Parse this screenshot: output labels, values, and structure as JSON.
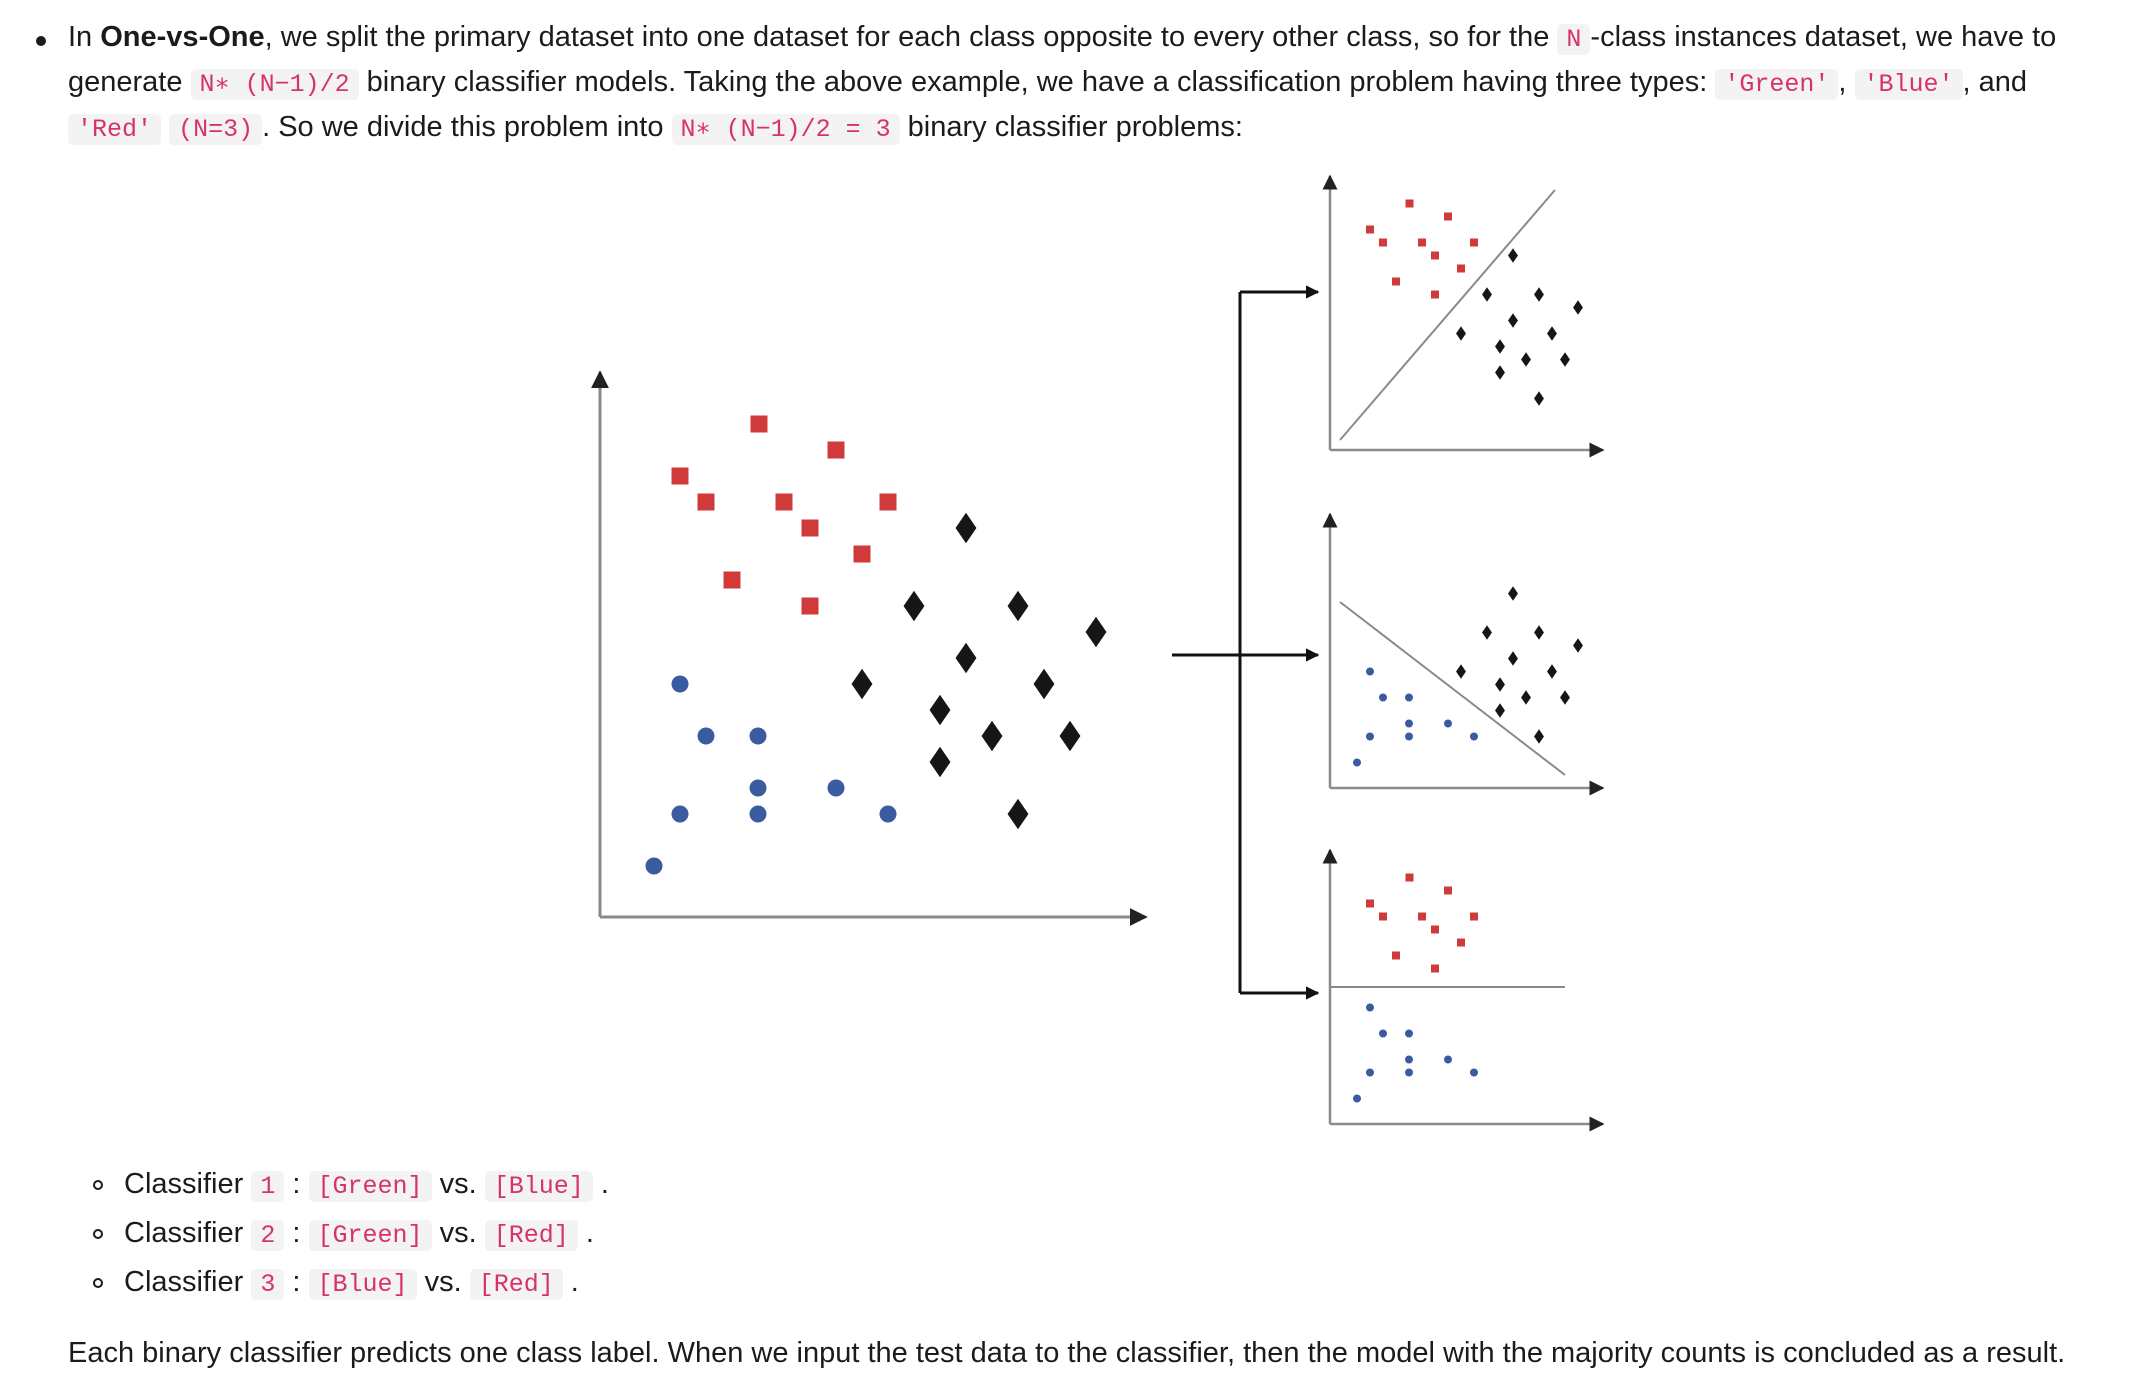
{
  "intro": {
    "t1": "In ",
    "bold": "One-vs-One",
    "t2": ", we split the primary dataset into one dataset for each class opposite to every other class, so for the ",
    "code_n": "N",
    "t3": "-class instances dataset, we have to generate ",
    "code_formula": "N∗ (N−1)/2",
    "t4": " binary classifier models. Taking the above example, we have a classification problem having three types: ",
    "code_green": "'Green'",
    "t5": ", ",
    "code_blue": "'Blue'",
    "t6": ", and ",
    "code_red": "'Red'",
    "t7": " ",
    "code_n3": "(N=3)",
    "t8": ". So we divide this problem into ",
    "code_formula3": "N∗ (N−1)/2 = 3",
    "t9": " binary classifier problems:"
  },
  "classifiers": [
    {
      "word": "Classifier",
      "num": "1",
      "colon": ":",
      "a": "[Green]",
      "vs": "vs.",
      "b": "[Blue]",
      "end": "."
    },
    {
      "word": "Classifier",
      "num": "2",
      "colon": ":",
      "a": "[Green]",
      "vs": "vs.",
      "b": "[Red]",
      "end": "."
    },
    {
      "word": "Classifier",
      "num": "3",
      "colon": ":",
      "a": "[Blue]",
      "vs": "vs.",
      "b": "[Red]",
      "end": "."
    }
  ],
  "conclusion": "Each binary classifier predicts one class label. When we input the test data to the classifier, then the model with the majority counts is concluded as a result.",
  "figure": {
    "colors": {
      "red": "#d03a3a",
      "blue": "#3a5ba0",
      "black": "#161616",
      "axis": "#8a8a8a"
    },
    "marker_icons": {
      "red": "square-icon",
      "blue": "circle-icon",
      "black": "diamond-icon"
    }
  }
}
